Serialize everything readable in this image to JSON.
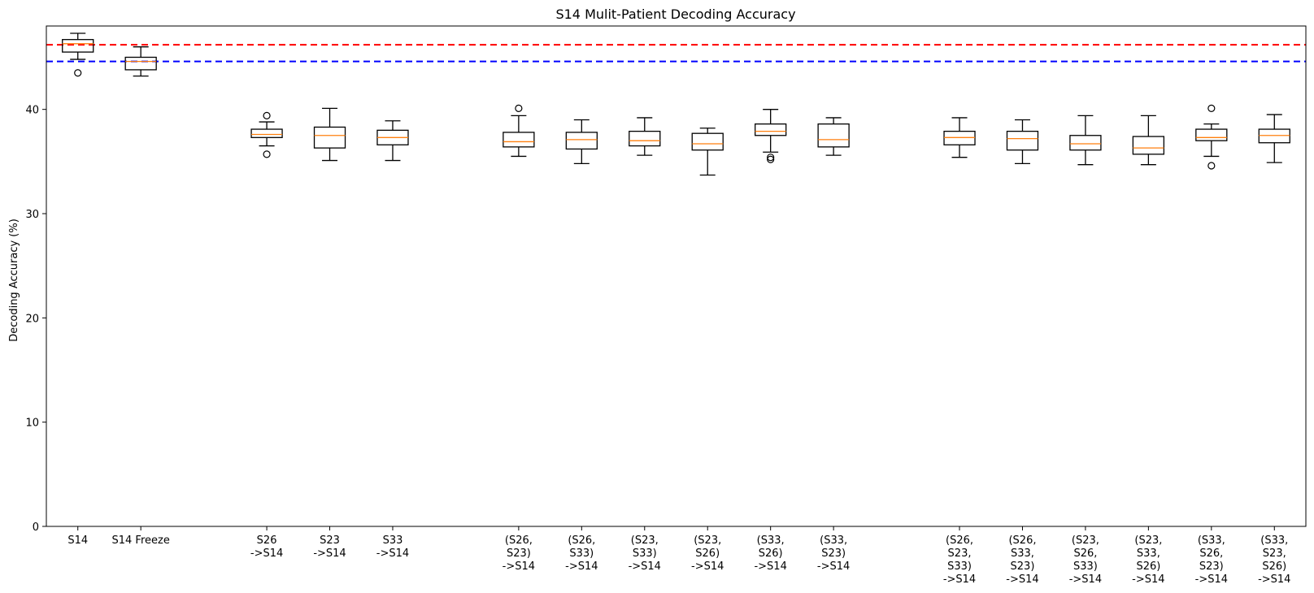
{
  "chart_data": {
    "type": "box",
    "title": "S14 Mulit-Patient Decoding Accuracy",
    "xlabel": "",
    "ylabel": "Decoding Accuracy (%)",
    "ylim": [
      0,
      48
    ],
    "yticks": [
      "0",
      "10",
      "20",
      "30",
      "40"
    ],
    "grid": false,
    "reference_lines": [
      {
        "y": 46.2,
        "color": "#ff0000",
        "style": "dashed"
      },
      {
        "y": 44.6,
        "color": "#0000ff",
        "style": "dashed"
      }
    ],
    "colors": {
      "box": "#000000",
      "median": "#ff7f0e"
    },
    "positions": [
      1,
      2,
      4,
      5,
      6,
      8,
      9,
      10,
      11,
      12,
      13,
      15,
      16,
      17,
      18,
      19,
      20
    ],
    "categories": [
      "S14",
      "S14 Freeze",
      "S26\n->S14",
      "S23\n->S14",
      "S33\n->S14",
      "(S26,\nS23)\n->S14",
      "(S26,\nS33)\n->S14",
      "(S23,\nS33)\n->S14",
      "(S23,\nS26)\n->S14",
      "(S33,\nS26)\n->S14",
      "(S33,\nS23)\n->S14",
      "(S26,\nS23,\nS33)\n->S14",
      "(S26,\nS33,\nS23)\n->S14",
      "(S23,\nS26,\nS33)\n->S14",
      "(S23,\nS33,\nS26)\n->S14",
      "(S33,\nS26,\nS23)\n->S14",
      "(S33,\nS23,\nS26)\n->S14"
    ],
    "boxes": [
      {
        "whislo": 44.8,
        "q1": 45.5,
        "med": 46.3,
        "q3": 46.7,
        "whishi": 47.3,
        "fliers": [
          43.5
        ]
      },
      {
        "whislo": 43.2,
        "q1": 43.8,
        "med": 44.6,
        "q3": 45.0,
        "whishi": 46.0,
        "fliers": []
      },
      {
        "whislo": 36.5,
        "q1": 37.3,
        "med": 37.6,
        "q3": 38.1,
        "whishi": 38.8,
        "fliers": [
          39.4,
          35.7
        ]
      },
      {
        "whislo": 35.1,
        "q1": 36.3,
        "med": 37.5,
        "q3": 38.3,
        "whishi": 40.1,
        "fliers": []
      },
      {
        "whislo": 35.1,
        "q1": 36.6,
        "med": 37.3,
        "q3": 38.0,
        "whishi": 38.9,
        "fliers": []
      },
      {
        "whislo": 35.5,
        "q1": 36.4,
        "med": 36.9,
        "q3": 37.8,
        "whishi": 39.4,
        "fliers": [
          40.1
        ]
      },
      {
        "whislo": 34.8,
        "q1": 36.2,
        "med": 37.1,
        "q3": 37.8,
        "whishi": 39.0,
        "fliers": []
      },
      {
        "whislo": 35.6,
        "q1": 36.5,
        "med": 37.0,
        "q3": 37.9,
        "whishi": 39.2,
        "fliers": []
      },
      {
        "whislo": 33.7,
        "q1": 36.1,
        "med": 36.7,
        "q3": 37.7,
        "whishi": 38.2,
        "fliers": []
      },
      {
        "whislo": 35.9,
        "q1": 37.5,
        "med": 37.9,
        "q3": 38.6,
        "whishi": 40.0,
        "fliers": [
          35.4,
          35.2
        ]
      },
      {
        "whislo": 35.6,
        "q1": 36.4,
        "med": 37.1,
        "q3": 38.6,
        "whishi": 39.2,
        "fliers": []
      },
      {
        "whislo": 35.4,
        "q1": 36.6,
        "med": 37.3,
        "q3": 37.9,
        "whishi": 39.2,
        "fliers": []
      },
      {
        "whislo": 34.8,
        "q1": 36.1,
        "med": 37.2,
        "q3": 37.9,
        "whishi": 39.0,
        "fliers": []
      },
      {
        "whislo": 34.7,
        "q1": 36.1,
        "med": 36.7,
        "q3": 37.5,
        "whishi": 39.4,
        "fliers": []
      },
      {
        "whislo": 34.7,
        "q1": 35.7,
        "med": 36.3,
        "q3": 37.4,
        "whishi": 39.4,
        "fliers": []
      },
      {
        "whislo": 35.5,
        "q1": 37.0,
        "med": 37.3,
        "q3": 38.1,
        "whishi": 38.6,
        "fliers": [
          40.1,
          34.6
        ]
      },
      {
        "whislo": 34.9,
        "q1": 36.8,
        "med": 37.5,
        "q3": 38.1,
        "whishi": 39.5,
        "fliers": []
      }
    ]
  }
}
